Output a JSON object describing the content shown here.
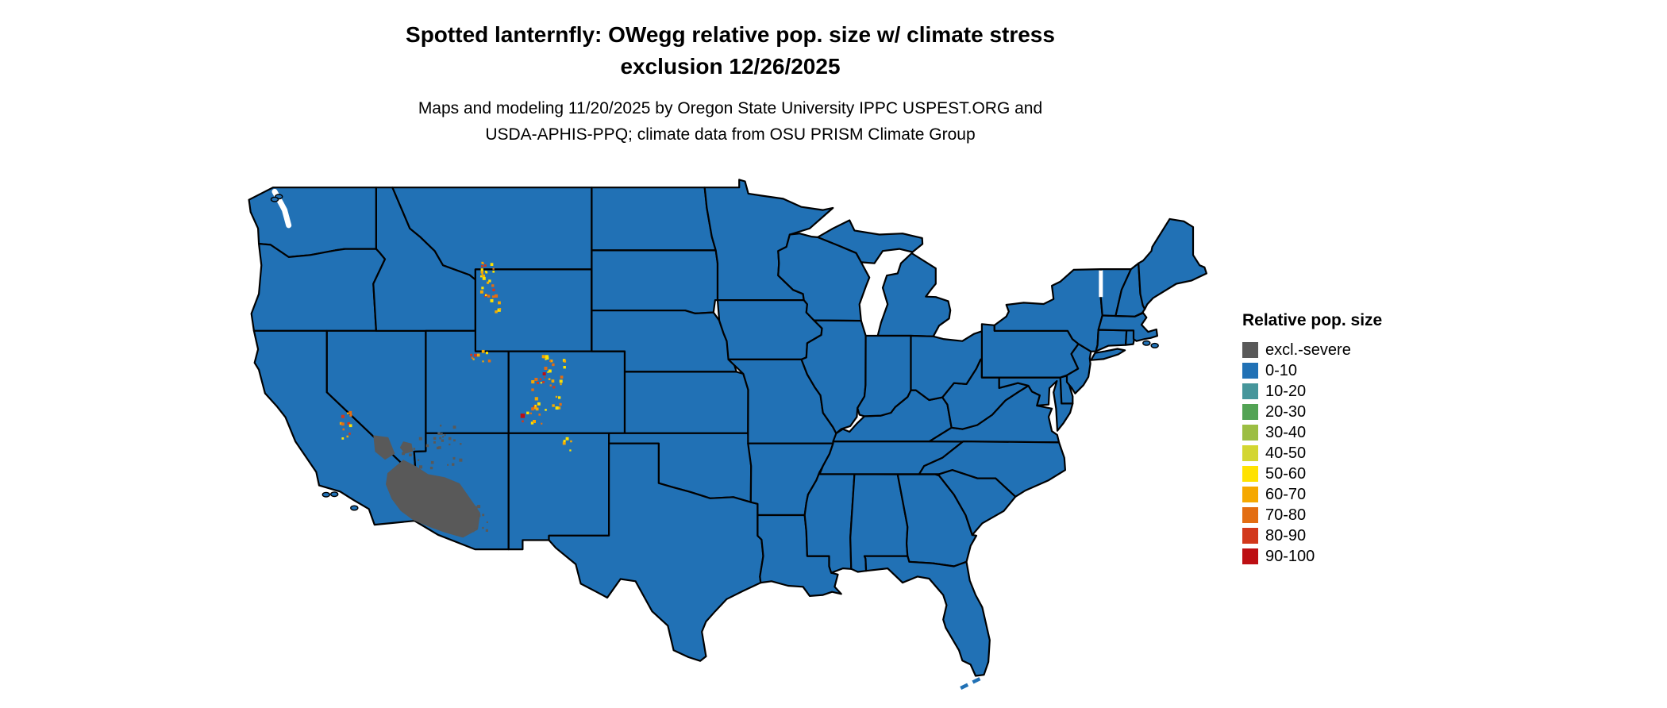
{
  "title": {
    "line1": "Spotted lanternfly: OWegg relative pop. size w/ climate stress",
    "line2": "exclusion 12/26/2025"
  },
  "subtitle": {
    "line1": "Maps and modeling 11/20/2025 by Oregon State University IPPC USPEST.ORG and",
    "line2": "USDA-APHIS-PPQ; climate data from OSU PRISM Climate Group"
  },
  "legend": {
    "title": "Relative pop. size",
    "items": [
      {
        "label": "excl.-severe",
        "color": "#595959"
      },
      {
        "label": "0-10",
        "color": "#2171B5"
      },
      {
        "label": "10-20",
        "color": "#46969B"
      },
      {
        "label": "20-30",
        "color": "#52A354"
      },
      {
        "label": "30-40",
        "color": "#9CBE43"
      },
      {
        "label": "40-50",
        "color": "#D3D631"
      },
      {
        "label": "50-60",
        "color": "#FFE200"
      },
      {
        "label": "60-70",
        "color": "#F5A800"
      },
      {
        "label": "70-80",
        "color": "#E36D12"
      },
      {
        "label": "80-90",
        "color": "#D2381C"
      },
      {
        "label": "90-100",
        "color": "#BD0F13"
      }
    ]
  },
  "map": {
    "region": "Continental United States with state boundaries",
    "border_color": "#000000",
    "background": "#FFFFFF",
    "dominant_class": "0-10",
    "excluded_class": "excl.-severe",
    "excluded_areas": [
      "southeastern California desert",
      "southern Nevada",
      "southern and western Arizona"
    ],
    "hotspot_areas": [
      "Sierra Nevada (California)",
      "Uinta Mountains (Utah)",
      "northwestern Wyoming ranges",
      "Colorado Rocky Mountains",
      "northern New Mexico"
    ]
  }
}
